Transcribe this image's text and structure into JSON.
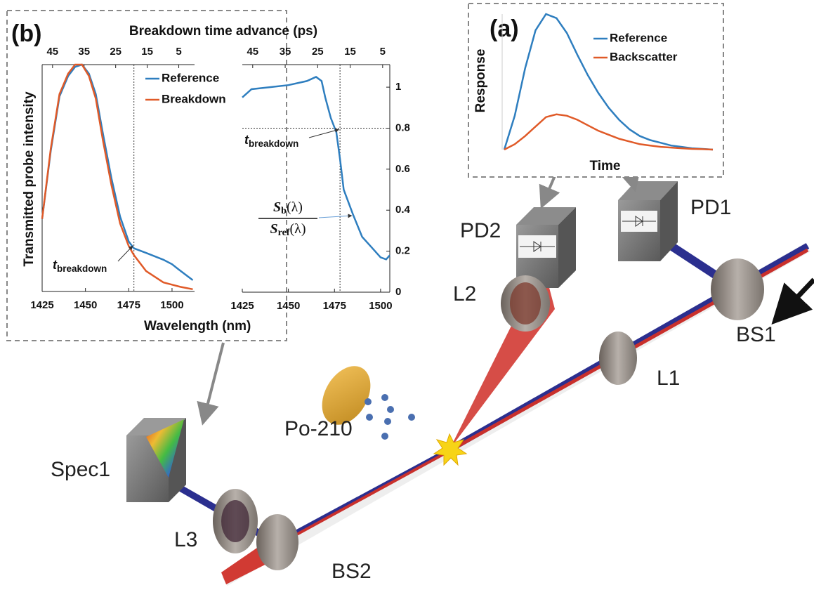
{
  "panel_labels": {
    "a": "(a)",
    "b": "(b)"
  },
  "components": [
    "PD1",
    "PD2",
    "L1",
    "L2",
    "L3",
    "BS1",
    "BS2",
    "Spec1",
    "Po-210"
  ],
  "chart_data": [
    {
      "type": "line",
      "xlabel": "Time",
      "ylabel": "Response",
      "ylim": [
        0,
        1
      ],
      "legend": "upper right",
      "series": [
        {
          "name": "Reference",
          "color": "#2e7ebf",
          "values": [
            0,
            0.25,
            0.6,
            0.88,
            1.0,
            0.97,
            0.86,
            0.7,
            0.55,
            0.42,
            0.31,
            0.22,
            0.15,
            0.1,
            0.07,
            0.05,
            0.03,
            0.02,
            0.01,
            0.005,
            0
          ]
        },
        {
          "name": "Backscatter",
          "color": "#e05a28",
          "values": [
            0,
            0.04,
            0.1,
            0.17,
            0.24,
            0.26,
            0.25,
            0.22,
            0.18,
            0.14,
            0.11,
            0.08,
            0.06,
            0.04,
            0.03,
            0.02,
            0.015,
            0.01,
            0.005,
            0.003,
            0
          ]
        }
      ]
    },
    {
      "type": "line",
      "xlabel": "Wavelength (nm)",
      "x2label": "Breakdown time advance (ps)",
      "ylabel": "Transmitted probe intensity",
      "x": [
        1425,
        1430,
        1435,
        1440,
        1444,
        1448,
        1452,
        1456,
        1460,
        1465,
        1470,
        1475,
        1478,
        1485,
        1495,
        1500,
        1505,
        1512
      ],
      "xlim": [
        1425,
        1513
      ],
      "xticks": [
        1425,
        1450,
        1475,
        1500
      ],
      "x2lim": [
        48.3,
        0
      ],
      "x2ticks": [
        45,
        35,
        25,
        15,
        5
      ],
      "ylim": [
        0,
        1
      ],
      "legend": "upper right",
      "marker_x": 1478,
      "annotation": {
        "base": "t",
        "sub": "breakdown"
      },
      "series": [
        {
          "name": "Reference",
          "color": "#2e7ebf",
          "values": [
            0.32,
            0.62,
            0.86,
            0.95,
            0.99,
            1.0,
            0.96,
            0.87,
            0.7,
            0.5,
            0.33,
            0.22,
            0.19,
            0.17,
            0.14,
            0.12,
            0.09,
            0.05
          ]
        },
        {
          "name": "Breakdown",
          "color": "#e05a28",
          "values": [
            0.32,
            0.63,
            0.87,
            0.96,
            1.0,
            1.0,
            0.95,
            0.85,
            0.67,
            0.47,
            0.3,
            0.2,
            0.16,
            0.09,
            0.04,
            0.03,
            0.02,
            0.01
          ]
        }
      ]
    },
    {
      "type": "line",
      "x": [
        1425,
        1430,
        1440,
        1450,
        1460,
        1465,
        1468,
        1470,
        1473,
        1476,
        1478,
        1480,
        1485,
        1490,
        1495,
        1500,
        1503,
        1505
      ],
      "xlim": [
        1425,
        1505
      ],
      "xticks": [
        1425,
        1450,
        1475,
        1500
      ],
      "x2lim": [
        48.2,
        2.8
      ],
      "x2ticks": [
        45,
        35,
        25,
        15,
        5
      ],
      "ylim": [
        0,
        1.11
      ],
      "yticks": [
        0,
        0.2,
        0.4,
        0.6,
        0.8,
        1
      ],
      "marker_x": 1478,
      "marker_y": 0.8,
      "annotation": {
        "base": "t",
        "sub": "breakdown"
      },
      "fraction": {
        "numerator": {
          "base": "S",
          "sub": "b",
          "arg": "(λ)"
        },
        "denominator": {
          "base": "S",
          "sub": "ref",
          "arg": "(λ)"
        }
      },
      "series": [
        {
          "color": "#2e7ebf",
          "values": [
            0.95,
            0.99,
            1.0,
            1.01,
            1.03,
            1.05,
            1.03,
            0.95,
            0.85,
            0.78,
            0.65,
            0.5,
            0.38,
            0.27,
            0.22,
            0.17,
            0.16,
            0.18
          ]
        }
      ]
    }
  ]
}
